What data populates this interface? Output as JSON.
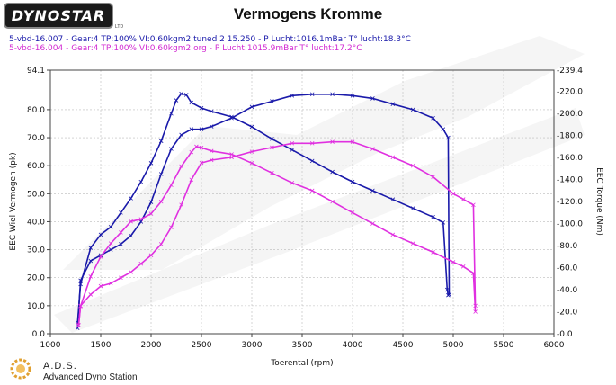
{
  "logo": {
    "text": "DYNOSTAR",
    "small": "LTD"
  },
  "runs": [
    "5-vbd-16.007 - Gear:4 TP:100% VI:0.60kgm2 tuned 2 15.250  - P Lucht:1016.1mBar T° lucht:18.3°C",
    "5-vbd-16.004 - Gear:4 TP:100% VI:0.60kgm2  org  - P Lucht:1015.9mBar T° lucht:17.2°C"
  ],
  "footer": {
    "brand": "A.D.S.",
    "subtitle": "Advanced Dyno Station"
  },
  "colors": {
    "tuned": "#1a1aaa",
    "original": "#e030e0",
    "grid": "#bbbbbb",
    "watermark": "#e8e8e8"
  },
  "chart_data": {
    "type": "line",
    "title": "Vermogens Kromme",
    "xlabel": "Toerental (rpm)",
    "ylabel": "EEC Wiel Vermogen (pk)",
    "y2label": "EEC Torque (Nm)",
    "xlim": [
      1000,
      6000
    ],
    "ylim": [
      0,
      94.1
    ],
    "y2lim": [
      0,
      239.4
    ],
    "x_ticks": [
      1000,
      1500,
      2000,
      2500,
      3000,
      3500,
      4000,
      4500,
      5000,
      5500,
      6000
    ],
    "x_tick_labels": [
      "1000",
      "1500",
      "2000",
      "2500",
      "3000",
      "3500",
      "4000",
      "4500",
      "5000",
      "5500",
      "6000"
    ],
    "y_ticks": [
      0,
      10,
      20,
      30,
      40,
      50,
      60,
      70,
      80,
      94.1
    ],
    "y_tick_labels": [
      "0.0",
      "10.0",
      "20.0",
      "30.0",
      "40.0",
      "50.0",
      "60.0",
      "70.0",
      "80.0",
      "94.1"
    ],
    "y2_ticks": [
      0,
      20,
      40,
      60,
      80,
      100,
      120,
      140,
      160,
      180,
      200,
      220,
      239.4
    ],
    "y2_tick_labels": [
      "-0.0",
      "-20.0",
      "-40.0",
      "-60.0",
      "-80.0",
      "-100.0",
      "-120.0",
      "-140.0",
      "-160.0",
      "-180.0",
      "-200.0",
      "-220.0",
      "-239.4"
    ],
    "grid": true,
    "series": [
      {
        "id": "tuned_power",
        "axis": "left",
        "x": [
          1270,
          1300,
          1400,
          1500,
          1600,
          1700,
          1800,
          1900,
          2000,
          2100,
          2200,
          2300,
          2400,
          2500,
          2600,
          2800,
          3000,
          3200,
          3400,
          3600,
          3800,
          4000,
          4200,
          4400,
          4600,
          4800,
          4900,
          4950,
          4960
        ],
        "y": [
          2,
          19,
          26,
          28,
          30,
          32,
          35,
          40,
          47,
          57,
          66,
          71,
          73,
          73,
          74,
          77,
          81,
          83,
          85,
          85.5,
          85.5,
          85,
          84,
          82,
          80,
          77,
          73,
          70,
          14
        ]
      },
      {
        "id": "tuned_torque",
        "axis": "right",
        "x": [
          1270,
          1300,
          1400,
          1500,
          1600,
          1700,
          1800,
          1900,
          2000,
          2100,
          2200,
          2250,
          2300,
          2350,
          2400,
          2500,
          2600,
          2800,
          3000,
          3200,
          3400,
          3600,
          3800,
          4000,
          4200,
          4400,
          4600,
          4800,
          4900,
          4940,
          4950
        ],
        "y": [
          10,
          45,
          78,
          90,
          97,
          110,
          123,
          138,
          155,
          175,
          200,
          212,
          218,
          217,
          210,
          205,
          202,
          197,
          188,
          177,
          167,
          157,
          147,
          138,
          130,
          122,
          114,
          106,
          101,
          40,
          35
        ]
      },
      {
        "id": "orig_power",
        "axis": "left",
        "x": [
          1280,
          1300,
          1400,
          1500,
          1600,
          1700,
          1800,
          1900,
          2000,
          2100,
          2200,
          2300,
          2400,
          2500,
          2600,
          2800,
          3000,
          3200,
          3400,
          3600,
          3800,
          4000,
          4200,
          4400,
          4600,
          4800,
          5000,
          5100,
          5200,
          5220
        ],
        "y": [
          3,
          10,
          14,
          17,
          18,
          20,
          22,
          25,
          28,
          32,
          38,
          46,
          55,
          61,
          62,
          63,
          65,
          66.5,
          68,
          68,
          68.5,
          68.5,
          66,
          63,
          60,
          56,
          50,
          48,
          46,
          10
        ]
      },
      {
        "id": "orig_torque",
        "axis": "right",
        "x": [
          1280,
          1300,
          1400,
          1500,
          1600,
          1700,
          1800,
          1900,
          2000,
          2100,
          2200,
          2300,
          2400,
          2450,
          2500,
          2600,
          2800,
          3000,
          3200,
          3400,
          3600,
          3800,
          4000,
          4200,
          4400,
          4600,
          4800,
          5000,
          5100,
          5200,
          5220
        ],
        "y": [
          8,
          25,
          52,
          70,
          82,
          92,
          102,
          104,
          109,
          120,
          135,
          152,
          165,
          170,
          169,
          166,
          163,
          155,
          146,
          137,
          130,
          120,
          110,
          100,
          90,
          82,
          74,
          65,
          61,
          55,
          20
        ]
      }
    ]
  }
}
